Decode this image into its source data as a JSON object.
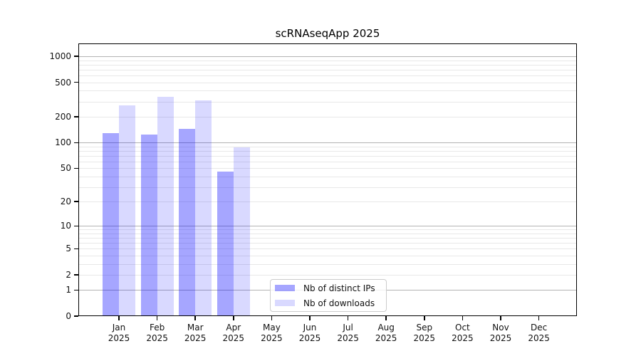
{
  "chart_data": {
    "type": "bar",
    "title": "scRNAseqApp 2025",
    "categories": [
      "Jan 2025",
      "Feb 2025",
      "Mar 2025",
      "Apr 2025",
      "May 2025",
      "Jun 2025",
      "Jul 2025",
      "Aug 2025",
      "Sep 2025",
      "Oct 2025",
      "Nov 2025",
      "Dec 2025"
    ],
    "series": [
      {
        "name": "Nb of distinct IPs",
        "color": "rgba(0,0,255,0.35)",
        "values": [
          130,
          124,
          145,
          46,
          null,
          null,
          null,
          null,
          null,
          null,
          null,
          null
        ]
      },
      {
        "name": "Nb of downloads",
        "color": "rgba(0,0,255,0.15)",
        "values": [
          270,
          340,
          310,
          88,
          null,
          null,
          null,
          null,
          null,
          null,
          null,
          null
        ]
      }
    ],
    "yscale": "log1p",
    "y_ticks": [
      0,
      1,
      2,
      5,
      10,
      20,
      50,
      100,
      200,
      500,
      1000
    ],
    "ylim": [
      0,
      1400
    ],
    "grid": true,
    "legend_position": "lower center",
    "colors": {
      "major_grid": "#b3b3b3",
      "minor_grid": "#e8e8e8",
      "axis": "#000000"
    }
  }
}
